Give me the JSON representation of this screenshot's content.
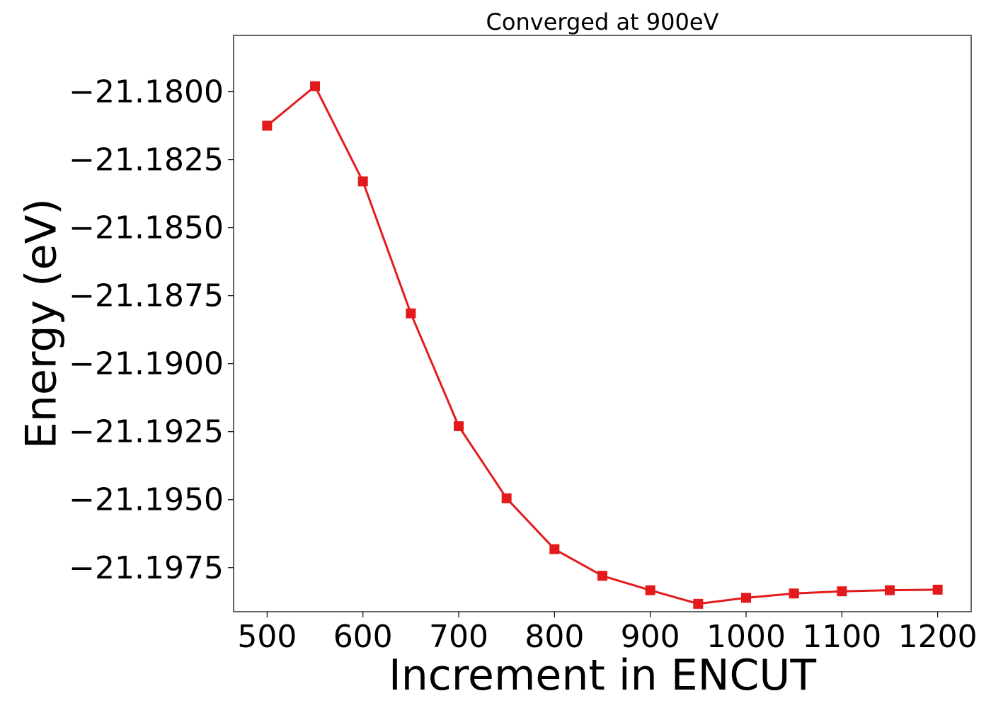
{
  "chart_data": {
    "type": "line",
    "title": "Converged at 900eV",
    "xlabel": "Increment in ENCUT",
    "ylabel": "Energy (eV)",
    "x": [
      500,
      550,
      600,
      650,
      700,
      750,
      800,
      850,
      900,
      950,
      1000,
      1050,
      1100,
      1150,
      1200
    ],
    "series": [
      {
        "values": [
          -21.18125,
          -21.1798,
          -21.1833,
          -21.18815,
          -21.1923,
          -21.19495,
          -21.19682,
          -21.1978,
          -21.19833,
          -21.19883,
          -21.19861,
          -21.19845,
          -21.19837,
          -21.19833,
          -21.19831
        ],
        "color": "#e31a1c",
        "marker": "square"
      }
    ],
    "xlim": [
      465,
      1235
    ],
    "ylim": [
      -21.19912,
      -21.17793
    ],
    "xticks": [
      500,
      600,
      700,
      800,
      900,
      1000,
      1100,
      1200
    ],
    "xtick_labels": [
      "500",
      "600",
      "700",
      "800",
      "900",
      "1000",
      "1100",
      "1200"
    ],
    "yticks": [
      -21.18,
      -21.1825,
      -21.185,
      -21.1875,
      -21.19,
      -21.1925,
      -21.195,
      -21.1975
    ],
    "ytick_labels": [
      "−21.1800",
      "−21.1825",
      "−21.1850",
      "−21.1875",
      "−21.1900",
      "−21.1925",
      "−21.1950",
      "−21.1975"
    ],
    "grid": false,
    "legend": false
  }
}
